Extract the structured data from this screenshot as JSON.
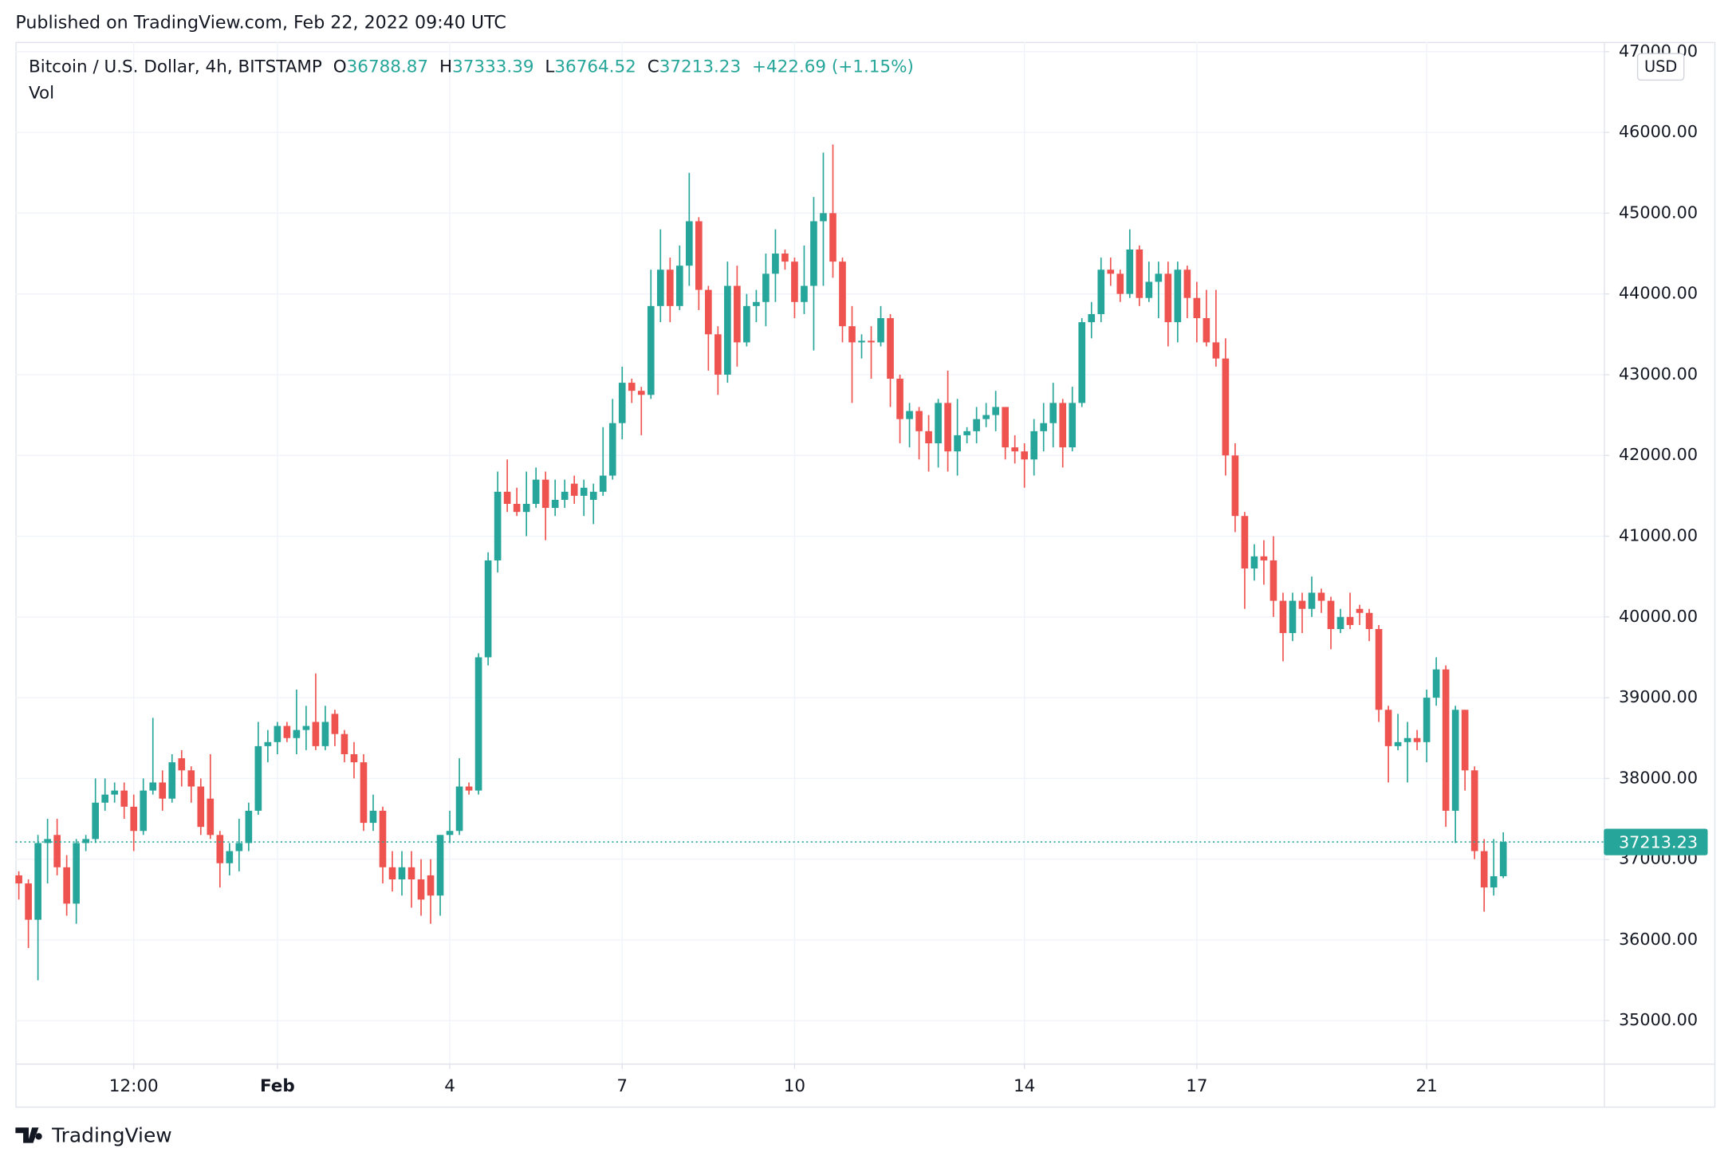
{
  "header": {
    "published": "Published on TradingView.com, Feb 22, 2022 09:40 UTC"
  },
  "chart_data": {
    "type": "candlestick",
    "title": "Bitcoin / U.S. Dollar, 4h, BITSTAMP",
    "ohlc_legend": {
      "open_label": "O",
      "open": 36788.87,
      "high_label": "H",
      "high": 37333.39,
      "low_label": "L",
      "low": 36764.52,
      "close_label": "C",
      "close": 37213.23,
      "change": "+422.69 (+1.15%)"
    },
    "indicator": "Vol",
    "currency": "USD",
    "up_color": "#26a69a",
    "down_color": "#ef5350",
    "grid": true,
    "last_price": 37213.23,
    "ylim": [
      34470,
      47120
    ],
    "yticks": [
      {
        "value": 35000,
        "label": "35000.00"
      },
      {
        "value": 36000,
        "label": "36000.00"
      },
      {
        "value": 37000,
        "label": "37000.00"
      },
      {
        "value": 38000,
        "label": "38000.00"
      },
      {
        "value": 39000,
        "label": "39000.00"
      },
      {
        "value": 40000,
        "label": "40000.00"
      },
      {
        "value": 41000,
        "label": "41000.00"
      },
      {
        "value": 42000,
        "label": "42000.00"
      },
      {
        "value": 43000,
        "label": "43000.00"
      },
      {
        "value": 44000,
        "label": "44000.00"
      },
      {
        "value": 45000,
        "label": "45000.00"
      },
      {
        "value": 46000,
        "label": "46000.00"
      },
      {
        "value": 47000,
        "label": "47000.00"
      }
    ],
    "xlim": [
      -0.35,
      165.5
    ],
    "xticks": [
      {
        "value": 12,
        "label": "12:00"
      },
      {
        "value": 27,
        "label": "Feb"
      },
      {
        "value": 45,
        "label": "4"
      },
      {
        "value": 63,
        "label": "7"
      },
      {
        "value": 81,
        "label": "10"
      },
      {
        "value": 105,
        "label": "14"
      },
      {
        "value": 123,
        "label": "17"
      },
      {
        "value": 147,
        "label": "21"
      }
    ],
    "candles": [
      [
        36800,
        36850,
        36500,
        36700
      ],
      [
        36700,
        36750,
        35900,
        36250
      ],
      [
        36250,
        37300,
        35500,
        37200
      ],
      [
        37200,
        37500,
        36700,
        37250
      ],
      [
        37300,
        37500,
        36800,
        36900
      ],
      [
        36900,
        37050,
        36300,
        36450
      ],
      [
        36450,
        37250,
        36200,
        37200
      ],
      [
        37200,
        37300,
        37100,
        37250
      ],
      [
        37250,
        38000,
        37200,
        37700
      ],
      [
        37700,
        38000,
        37600,
        37800
      ],
      [
        37800,
        37950,
        37700,
        37850
      ],
      [
        37850,
        37950,
        37500,
        37650
      ],
      [
        37650,
        37800,
        37100,
        37350
      ],
      [
        37350,
        38000,
        37300,
        37850
      ],
      [
        37850,
        38750,
        37800,
        37950
      ],
      [
        37950,
        38100,
        37600,
        37750
      ],
      [
        37750,
        38300,
        37700,
        38200
      ],
      [
        38250,
        38350,
        37900,
        38100
      ],
      [
        38100,
        38150,
        37700,
        37900
      ],
      [
        37900,
        38000,
        37300,
        37400
      ],
      [
        37750,
        38300,
        37250,
        37300
      ],
      [
        37300,
        37350,
        36650,
        36950
      ],
      [
        36950,
        37200,
        36800,
        37100
      ],
      [
        37100,
        37500,
        36850,
        37200
      ],
      [
        37200,
        37700,
        37100,
        37600
      ],
      [
        37600,
        38700,
        37550,
        38400
      ],
      [
        38400,
        38600,
        38200,
        38450
      ],
      [
        38450,
        38700,
        38300,
        38650
      ],
      [
        38650,
        38700,
        38450,
        38500
      ],
      [
        38500,
        39100,
        38300,
        38600
      ],
      [
        38600,
        38900,
        38350,
        38650
      ],
      [
        38700,
        39300,
        38350,
        38400
      ],
      [
        38400,
        38900,
        38350,
        38700
      ],
      [
        38800,
        38850,
        38400,
        38550
      ],
      [
        38550,
        38600,
        38200,
        38300
      ],
      [
        38300,
        38450,
        38000,
        38200
      ],
      [
        38200,
        38300,
        37350,
        37450
      ],
      [
        37450,
        37800,
        37350,
        37600
      ],
      [
        37600,
        37650,
        36700,
        36900
      ],
      [
        36900,
        37100,
        36600,
        36750
      ],
      [
        36750,
        37100,
        36550,
        36900
      ],
      [
        36900,
        37100,
        36400,
        36750
      ],
      [
        36750,
        37000,
        36300,
        36500
      ],
      [
        36800,
        37000,
        36200,
        36550
      ],
      [
        36550,
        37300,
        36300,
        37300
      ],
      [
        37300,
        37600,
        37200,
        37350
      ],
      [
        37350,
        38250,
        37300,
        37900
      ],
      [
        37900,
        37950,
        37800,
        37850
      ],
      [
        37850,
        39550,
        37800,
        39500
      ],
      [
        39500,
        40800,
        39400,
        40700
      ],
      [
        40700,
        41800,
        40550,
        41550
      ],
      [
        41550,
        41950,
        41300,
        41400
      ],
      [
        41400,
        41600,
        41250,
        41300
      ],
      [
        41300,
        41800,
        41000,
        41400
      ],
      [
        41400,
        41850,
        41350,
        41700
      ],
      [
        41700,
        41800,
        40950,
        41350
      ],
      [
        41350,
        41700,
        41250,
        41450
      ],
      [
        41450,
        41700,
        41350,
        41550
      ],
      [
        41650,
        41750,
        41400,
        41500
      ],
      [
        41500,
        41700,
        41250,
        41600
      ],
      [
        41450,
        41650,
        41150,
        41550
      ],
      [
        41550,
        42350,
        41500,
        41750
      ],
      [
        41750,
        42700,
        41700,
        42400
      ],
      [
        42400,
        43100,
        42200,
        42900
      ],
      [
        42900,
        42950,
        42650,
        42800
      ],
      [
        42800,
        42850,
        42250,
        42750
      ],
      [
        42750,
        44300,
        42700,
        43850
      ],
      [
        43850,
        44800,
        43650,
        44300
      ],
      [
        44300,
        44450,
        43650,
        43850
      ],
      [
        43850,
        44600,
        43800,
        44350
      ],
      [
        44350,
        45500,
        44100,
        44900
      ],
      [
        44900,
        44950,
        43800,
        44050
      ],
      [
        44050,
        44100,
        43050,
        43500
      ],
      [
        43500,
        43600,
        42750,
        43000
      ],
      [
        43000,
        44400,
        42900,
        44100
      ],
      [
        44100,
        44350,
        43100,
        43400
      ],
      [
        43400,
        44000,
        43350,
        43850
      ],
      [
        43850,
        44050,
        43650,
        43900
      ],
      [
        43900,
        44500,
        43600,
        44250
      ],
      [
        44250,
        44800,
        43900,
        44500
      ],
      [
        44500,
        44550,
        44300,
        44400
      ],
      [
        44400,
        44450,
        43700,
        43900
      ],
      [
        43900,
        44600,
        43750,
        44100
      ],
      [
        44100,
        45200,
        43300,
        44900
      ],
      [
        44900,
        45750,
        44100,
        45000
      ],
      [
        45000,
        45850,
        44200,
        44400
      ],
      [
        44400,
        44450,
        43400,
        43600
      ],
      [
        43600,
        43850,
        42650,
        43400
      ],
      [
        43400,
        43500,
        43200,
        43420
      ],
      [
        43420,
        43600,
        42950,
        43400
      ],
      [
        43400,
        43850,
        43350,
        43700
      ],
      [
        43700,
        43750,
        42600,
        42950
      ],
      [
        42950,
        43000,
        42150,
        42450
      ],
      [
        42450,
        42650,
        42100,
        42550
      ],
      [
        42550,
        42600,
        41950,
        42300
      ],
      [
        42300,
        42500,
        41800,
        42150
      ],
      [
        42150,
        42700,
        41850,
        42650
      ],
      [
        42650,
        43050,
        41800,
        42050
      ],
      [
        42050,
        42700,
        41750,
        42250
      ],
      [
        42250,
        42350,
        42150,
        42300
      ],
      [
        42300,
        42600,
        42150,
        42450
      ],
      [
        42450,
        42650,
        42350,
        42500
      ],
      [
        42500,
        42800,
        42300,
        42600
      ],
      [
        42600,
        42600,
        41950,
        42100
      ],
      [
        42100,
        42250,
        41900,
        42050
      ],
      [
        42050,
        42150,
        41600,
        41950
      ],
      [
        41950,
        42450,
        41750,
        42300
      ],
      [
        42300,
        42650,
        42050,
        42400
      ],
      [
        42400,
        42900,
        42100,
        42650
      ],
      [
        42650,
        42700,
        41850,
        42100
      ],
      [
        42100,
        42850,
        42050,
        42650
      ],
      [
        42650,
        43700,
        42600,
        43650
      ],
      [
        43650,
        43900,
        43450,
        43750
      ],
      [
        43750,
        44450,
        43650,
        44300
      ],
      [
        44300,
        44450,
        44100,
        44250
      ],
      [
        44250,
        44300,
        43900,
        44000
      ],
      [
        44000,
        44800,
        43950,
        44550
      ],
      [
        44550,
        44600,
        43850,
        43950
      ],
      [
        43950,
        44400,
        43900,
        44150
      ],
      [
        44150,
        44400,
        43700,
        44250
      ],
      [
        44250,
        44400,
        43350,
        43650
      ],
      [
        43650,
        44400,
        43400,
        44300
      ],
      [
        44300,
        44350,
        43700,
        43950
      ],
      [
        43950,
        44150,
        43400,
        43700
      ],
      [
        43700,
        44050,
        43350,
        43400
      ],
      [
        43400,
        44050,
        43100,
        43200
      ],
      [
        43200,
        43450,
        41750,
        42000
      ],
      [
        42000,
        42150,
        41050,
        41250
      ],
      [
        41250,
        41300,
        40100,
        40600
      ],
      [
        40600,
        40900,
        40450,
        40750
      ],
      [
        40750,
        40950,
        40400,
        40700
      ],
      [
        40700,
        41000,
        40000,
        40200
      ],
      [
        40200,
        40300,
        39450,
        39800
      ],
      [
        39800,
        40300,
        39700,
        40200
      ],
      [
        40200,
        40300,
        39800,
        40100
      ],
      [
        40100,
        40500,
        40000,
        40300
      ],
      [
        40300,
        40350,
        40050,
        40200
      ],
      [
        40200,
        40250,
        39600,
        39850
      ],
      [
        39850,
        40100,
        39800,
        40000
      ],
      [
        40000,
        40300,
        39850,
        39900
      ],
      [
        40100,
        40150,
        39900,
        40050
      ],
      [
        40050,
        40100,
        39700,
        39850
      ],
      [
        39850,
        39900,
        38700,
        38850
      ],
      [
        38850,
        38900,
        37950,
        38400
      ],
      [
        38400,
        38800,
        38350,
        38450
      ],
      [
        38450,
        38700,
        37950,
        38500
      ],
      [
        38500,
        38600,
        38350,
        38450
      ],
      [
        38450,
        39100,
        38200,
        39000
      ],
      [
        39000,
        39500,
        38900,
        39350
      ],
      [
        39350,
        39400,
        37400,
        37600
      ],
      [
        37600,
        38900,
        37200,
        38850
      ],
      [
        38850,
        38850,
        37850,
        38100
      ],
      [
        38100,
        38150,
        37000,
        37100
      ],
      [
        37100,
        37250,
        36350,
        36650
      ],
      [
        36650,
        37250,
        36550,
        36788.87
      ],
      [
        36788.87,
        37333.39,
        36764.52,
        37213.23
      ]
    ],
    "branding": "TradingView"
  }
}
